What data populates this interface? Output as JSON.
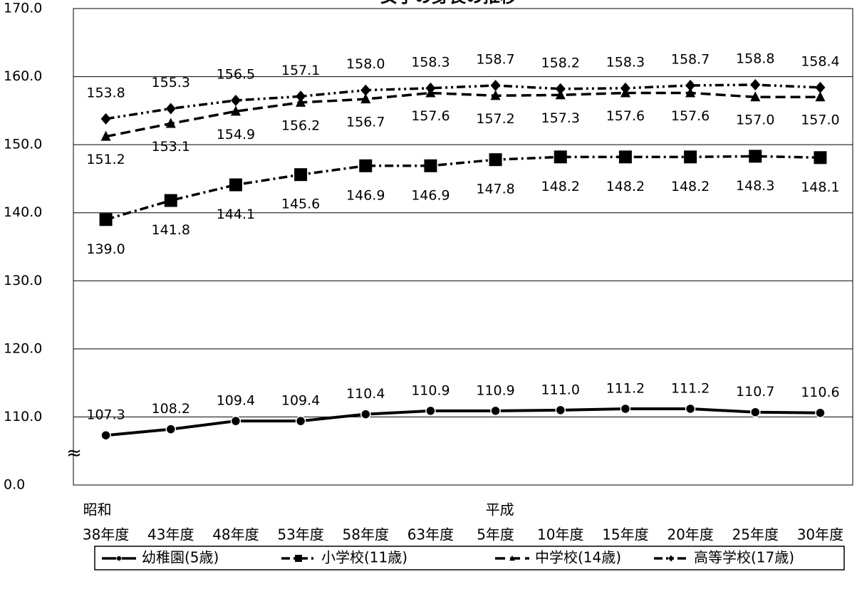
{
  "chart_data": {
    "type": "line",
    "title": "女子の身長の推移",
    "categories": [
      "38年度",
      "43年度",
      "48年度",
      "53年度",
      "58年度",
      "63年度",
      "5年度",
      "10年度",
      "15年度",
      "20年度",
      "25年度",
      "30年度"
    ],
    "era_labels": [
      "昭和",
      null,
      null,
      null,
      null,
      null,
      "平成",
      null,
      null,
      null,
      null,
      null
    ],
    "ylim": [
      0,
      170
    ],
    "axis_break": [
      0,
      100
    ],
    "break_symbol": "≈",
    "yticks": [
      {
        "value": 0,
        "label": "0.0"
      },
      {
        "value": 110,
        "label": "110.0"
      },
      {
        "value": 120,
        "label": "120.0"
      },
      {
        "value": 130,
        "label": "130.0"
      },
      {
        "value": 140,
        "label": "140.0"
      },
      {
        "value": 150,
        "label": "150.0"
      },
      {
        "value": 160,
        "label": "160.0"
      },
      {
        "value": 170,
        "label": "170.0"
      }
    ],
    "grid": true,
    "series": [
      {
        "name": "幼稚園(5歳)",
        "color": "#000000",
        "dash": "solid",
        "marker": "circle",
        "label_side": "above",
        "values": [
          107.3,
          108.2,
          109.4,
          109.4,
          110.4,
          110.9,
          110.9,
          111.0,
          111.2,
          111.2,
          110.7,
          110.6
        ],
        "value_labels": [
          "107.3",
          "108.2",
          "109.4",
          "109.4",
          "110.4",
          "110.9",
          "110.9",
          "111.0",
          "111.2",
          "111.2",
          "110.7",
          "110.6"
        ]
      },
      {
        "name": "小学校(11歳)",
        "color": "#000000",
        "dash": "dashdot",
        "marker": "square",
        "label_side": "below",
        "values": [
          139.0,
          141.8,
          144.1,
          145.6,
          146.9,
          146.9,
          147.8,
          148.2,
          148.2,
          148.2,
          148.3,
          148.1
        ],
        "value_labels": [
          "139.0",
          "141.8",
          "144.1",
          "145.6",
          "146.9",
          "146.9",
          "147.8",
          "148.2",
          "148.2",
          "148.2",
          "148.3",
          "148.1"
        ]
      },
      {
        "name": "中学校(14歳)",
        "color": "#000000",
        "dash": "dash",
        "marker": "triangle",
        "label_side": "below",
        "values": [
          151.2,
          153.1,
          154.9,
          156.2,
          156.7,
          157.6,
          157.2,
          157.3,
          157.6,
          157.6,
          157.0,
          157.0
        ],
        "value_labels": [
          "151.2",
          "153.1",
          "154.9",
          "156.2",
          "156.7",
          "157.6",
          "157.2",
          "157.3",
          "157.6",
          "157.6",
          "157.0",
          "157.0"
        ]
      },
      {
        "name": "高等学校(17歳)",
        "color": "#000000",
        "dash": "dashdotdot",
        "marker": "diamond",
        "label_side": "above",
        "values": [
          153.8,
          155.3,
          156.5,
          157.1,
          158.0,
          158.3,
          158.7,
          158.2,
          158.3,
          158.7,
          158.8,
          158.4
        ],
        "value_labels": [
          "153.8",
          "155.3",
          "156.5",
          "157.1",
          "158.0",
          "158.3",
          "158.7",
          "158.2",
          "158.3",
          "158.7",
          "158.8",
          "158.4"
        ]
      }
    ]
  }
}
